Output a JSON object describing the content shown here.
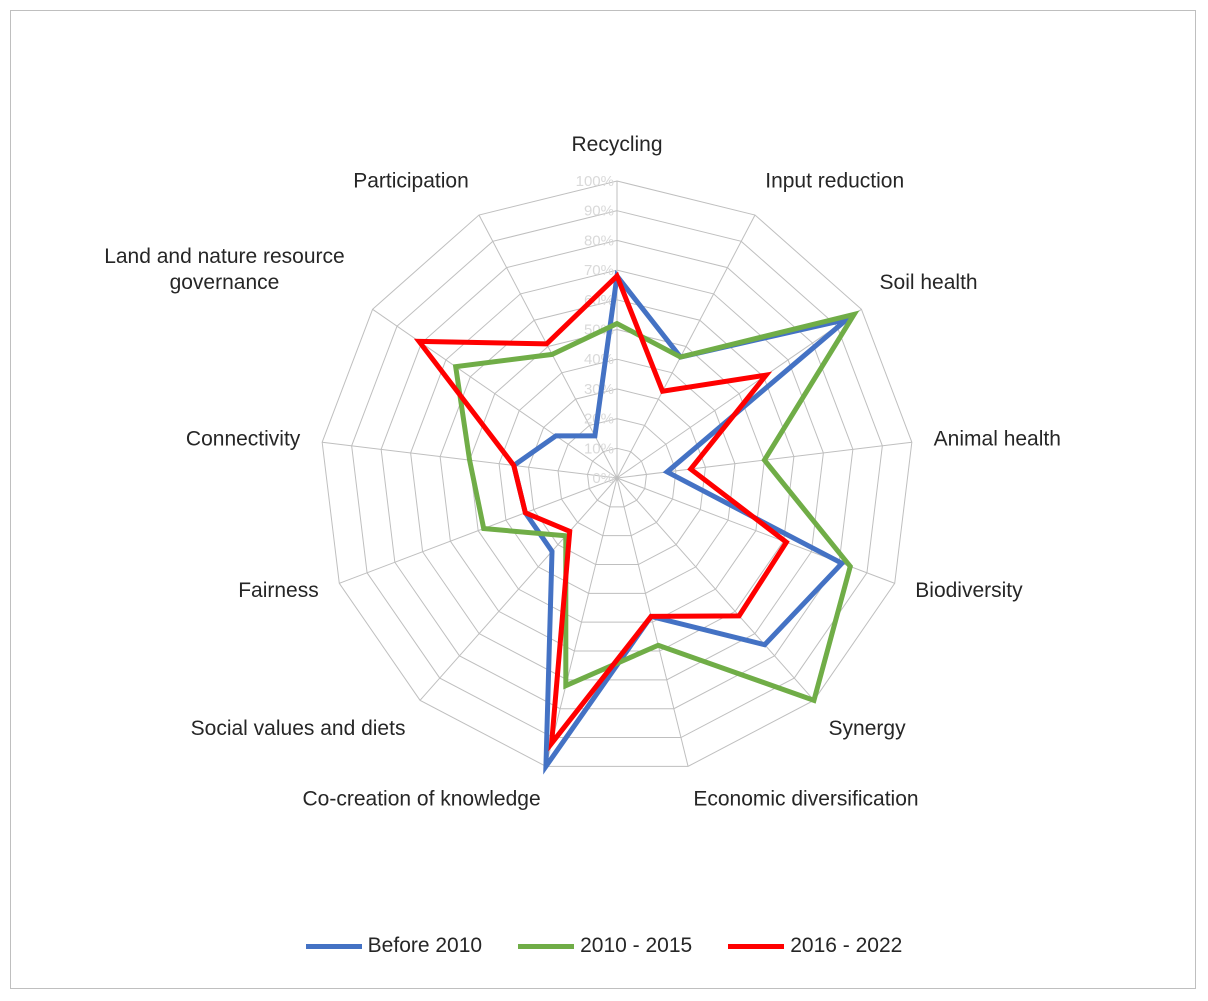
{
  "chart_data": {
    "type": "radar",
    "categories": [
      "Recycling",
      "Input reduction",
      "Soil health",
      "Animal health",
      "Biodiversity",
      "Synergy",
      "Economic diversification",
      "Co-creation of knowledge",
      "Social values and diets",
      "Fairness",
      "Connectivity",
      "Land and nature resource governance",
      "Participation"
    ],
    "category_lines": [
      [
        "Recycling"
      ],
      [
        "Input reduction"
      ],
      [
        "Soil health"
      ],
      [
        "Animal health"
      ],
      [
        "Biodiversity"
      ],
      [
        "Synergy"
      ],
      [
        "Economic diversification"
      ],
      [
        "Co-creation of knowledge"
      ],
      [
        "Social values and diets"
      ],
      [
        "Fairness"
      ],
      [
        "Connectivity"
      ],
      [
        "Land and nature resource",
        "governance"
      ],
      [
        "Participation"
      ]
    ],
    "tick_labels": [
      "0%",
      "10%",
      "20%",
      "30%",
      "40%",
      "50%",
      "60%",
      "70%",
      "80%",
      "90%",
      "100%"
    ],
    "rlim": [
      0,
      100
    ],
    "grid": true,
    "legend_position": "bottom",
    "series": [
      {
        "name": "Before 2010",
        "color": "#4472c4",
        "values": [
          68,
          46,
          94,
          17,
          81,
          75,
          48,
          100,
          33,
          33,
          35,
          25,
          16
        ]
      },
      {
        "name": "2010 - 2015",
        "color": "#70ad47",
        "values": [
          52,
          46,
          97,
          50,
          84,
          100,
          58,
          72,
          26,
          48,
          50,
          66,
          47
        ]
      },
      {
        "name": "2016 - 2022",
        "color": "#ff0000",
        "values": [
          68,
          33,
          61,
          25,
          61,
          62,
          48,
          92,
          24,
          33,
          35,
          81,
          51
        ]
      }
    ]
  }
}
